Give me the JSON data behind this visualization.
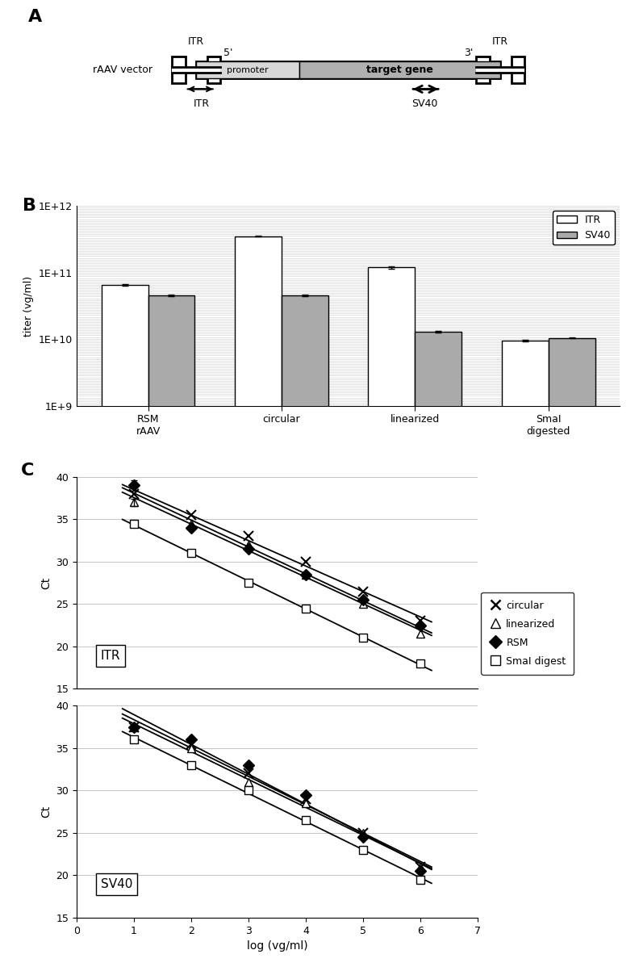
{
  "panel_A": {
    "itr_label": "ITR",
    "five_prime": "5'",
    "three_prime": "3'",
    "promoter": "promoter",
    "target_gene": "target gene",
    "raav_label": "rAAV vector",
    "itr_bottom_left": "ITR",
    "sv40_bottom": "SV40"
  },
  "panel_B": {
    "categories": [
      "RSM\nrAAV",
      "circular",
      "linearized",
      "SmaI\ndigested"
    ],
    "ITR_values": [
      65000000000.0,
      350000000000.0,
      120000000000.0,
      9500000000.0
    ],
    "SV40_values": [
      45000000000.0,
      45000000000.0,
      13000000000.0,
      10500000000.0
    ],
    "ITR_errors": [
      1500000000.0,
      3000000000.0,
      5000000000.0,
      300000000.0
    ],
    "SV40_errors": [
      1000000000.0,
      1000000000.0,
      500000000.0,
      200000000.0
    ],
    "ylabel": "titer (vg/ml)",
    "ylim_log": [
      1000000000.0,
      1000000000000.0
    ],
    "yticks": [
      1000000000.0,
      10000000000.0,
      100000000000.0,
      1000000000000.0
    ],
    "ytick_labels": [
      "1E+9",
      "1E+10",
      "1E+11",
      "1E+12"
    ],
    "bar_width": 0.35,
    "ITR_color": "white",
    "SV40_color": "#aaaaaa",
    "legend_labels": [
      "ITR",
      "SV40"
    ]
  },
  "panel_C_ITR": {
    "label": "ITR",
    "series": {
      "circular": {
        "x": [
          1,
          2,
          3,
          4,
          5,
          6
        ],
        "y": [
          38.0,
          35.5,
          33.0,
          30.0,
          26.5,
          23.0
        ],
        "marker": "x",
        "ms": 8
      },
      "linearized": {
        "x": [
          1,
          2,
          3,
          4,
          5,
          6
        ],
        "y": [
          37.0,
          34.5,
          32.0,
          28.5,
          25.0,
          21.5
        ],
        "marker": "^",
        "ms": 7,
        "mfc": "white"
      },
      "RSM": {
        "x": [
          1,
          2,
          3,
          4,
          5,
          6
        ],
        "y": [
          39.0,
          34.0,
          31.5,
          28.5,
          25.5,
          22.5
        ],
        "marker": "D",
        "ms": 7
      },
      "SmaI": {
        "x": [
          1,
          2,
          3,
          4,
          5,
          6
        ],
        "y": [
          34.5,
          31.0,
          27.5,
          24.5,
          21.0,
          18.0
        ],
        "marker": "s",
        "ms": 7,
        "mfc": "white"
      }
    }
  },
  "panel_C_SV40": {
    "label": "SV40",
    "series": {
      "circular": {
        "x": [
          1,
          2,
          3,
          4,
          5,
          6
        ],
        "y": [
          37.5,
          35.5,
          32.0,
          29.0,
          25.0,
          21.0
        ],
        "marker": "x",
        "ms": 8
      },
      "linearized": {
        "x": [
          1,
          2,
          3,
          4,
          5,
          6
        ],
        "y": [
          37.5,
          35.0,
          31.0,
          28.5,
          25.0,
          21.0
        ],
        "marker": "^",
        "ms": 7,
        "mfc": "white"
      },
      "RSM": {
        "x": [
          1,
          2,
          3,
          4,
          5,
          6
        ],
        "y": [
          37.5,
          36.0,
          33.0,
          29.5,
          24.5,
          20.5
        ],
        "marker": "D",
        "ms": 7
      },
      "SmaI": {
        "x": [
          1,
          2,
          3,
          4,
          5,
          6
        ],
        "y": [
          36.0,
          33.0,
          30.0,
          26.5,
          23.0,
          19.5
        ],
        "marker": "s",
        "ms": 7,
        "mfc": "white"
      }
    }
  },
  "legend_C": {
    "circular_label": "circular",
    "linearized_label": "linearized",
    "RSM_label": "RSM",
    "SmaI_label": "SmaI digest"
  }
}
